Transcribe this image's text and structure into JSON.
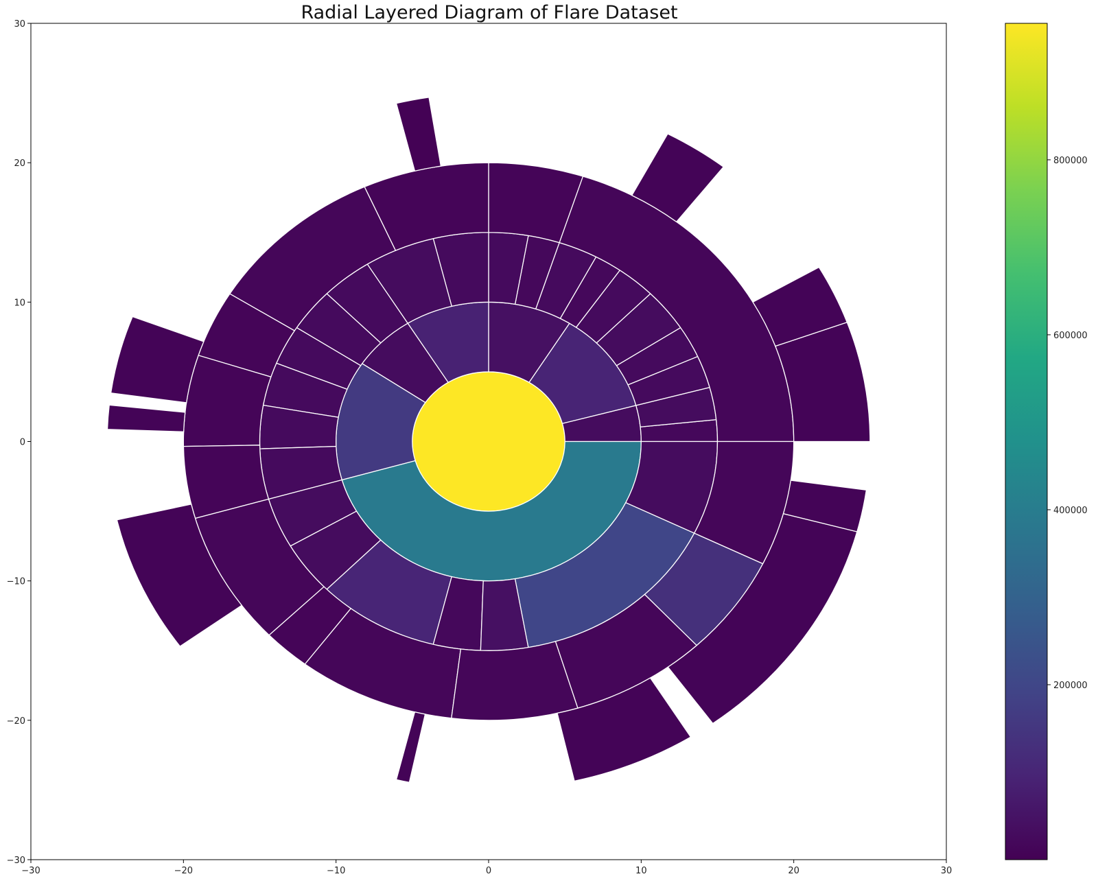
{
  "chart_data": {
    "type": "sunburst",
    "title": "Radial Layered Diagram of Flare Dataset",
    "xlim": [
      -30,
      30
    ],
    "ylim": [
      -30,
      30
    ],
    "xticks": [
      "−30",
      "−20",
      "−10",
      "0",
      "10",
      "20",
      "30"
    ],
    "yticks": [
      "−30",
      "−20",
      "−10",
      "0",
      "10",
      "20",
      "30"
    ],
    "colormap": "viridis",
    "colorbar": {
      "range": [
        0,
        956000
      ],
      "ticks": [
        "200000",
        "400000",
        "600000",
        "800000"
      ],
      "tick_values": [
        200000,
        400000,
        600000,
        800000
      ]
    },
    "rings": [
      {
        "level": 0,
        "inner_radius": 0,
        "outer_radius": 5,
        "segments": [
          {
            "start_deg": 0,
            "end_deg": 360,
            "value": 956000
          }
        ]
      },
      {
        "level": 1,
        "inner_radius": 5,
        "outer_radius": 10,
        "segments": [
          {
            "start_deg": 0,
            "end_deg": 15,
            "value": 30000
          },
          {
            "start_deg": 15,
            "end_deg": 58,
            "value": 95000
          },
          {
            "start_deg": 58,
            "end_deg": 90,
            "value": 40000
          },
          {
            "start_deg": 90,
            "end_deg": 122,
            "value": 90000
          },
          {
            "start_deg": 122,
            "end_deg": 146,
            "value": 30000
          },
          {
            "start_deg": 146,
            "end_deg": 196,
            "value": 160000
          },
          {
            "start_deg": 196,
            "end_deg": 360,
            "value": 390000
          }
        ]
      },
      {
        "level": 2,
        "inner_radius": 10,
        "outer_radius": 15,
        "segments": [
          {
            "start_deg": 0,
            "end_deg": 6,
            "value": 20000
          },
          {
            "start_deg": 6,
            "end_deg": 15,
            "value": 30000
          },
          {
            "start_deg": 15,
            "end_deg": 24,
            "value": 25000
          },
          {
            "start_deg": 24,
            "end_deg": 33,
            "value": 25000
          },
          {
            "start_deg": 33,
            "end_deg": 45,
            "value": 30000
          },
          {
            "start_deg": 45,
            "end_deg": 55,
            "value": 25000
          },
          {
            "start_deg": 55,
            "end_deg": 62,
            "value": 20000
          },
          {
            "start_deg": 62,
            "end_deg": 72,
            "value": 25000
          },
          {
            "start_deg": 72,
            "end_deg": 80,
            "value": 20000
          },
          {
            "start_deg": 80,
            "end_deg": 90,
            "value": 25000
          },
          {
            "start_deg": 90,
            "end_deg": 104,
            "value": 25000
          },
          {
            "start_deg": 104,
            "end_deg": 122,
            "value": 30000
          },
          {
            "start_deg": 122,
            "end_deg": 135,
            "value": 25000
          },
          {
            "start_deg": 135,
            "end_deg": 147,
            "value": 25000
          },
          {
            "start_deg": 147,
            "end_deg": 158,
            "value": 25000
          },
          {
            "start_deg": 158,
            "end_deg": 170,
            "value": 25000
          },
          {
            "start_deg": 170,
            "end_deg": 182,
            "value": 25000
          },
          {
            "start_deg": 182,
            "end_deg": 196,
            "value": 25000
          },
          {
            "start_deg": 196,
            "end_deg": 210,
            "value": 30000
          },
          {
            "start_deg": 210,
            "end_deg": 225,
            "value": 30000
          },
          {
            "start_deg": 225,
            "end_deg": 256,
            "value": 100000
          },
          {
            "start_deg": 256,
            "end_deg": 268,
            "value": 20000
          },
          {
            "start_deg": 268,
            "end_deg": 280,
            "value": 40000
          },
          {
            "start_deg": 280,
            "end_deg": 334,
            "value": 200000
          },
          {
            "start_deg": 334,
            "end_deg": 360,
            "value": 30000
          }
        ]
      },
      {
        "level": 3,
        "inner_radius": 15,
        "outer_radius": 20,
        "segments": [
          {
            "start_deg": 0,
            "end_deg": 72,
            "value": 15000
          },
          {
            "start_deg": 72,
            "end_deg": 90,
            "value": 12000
          },
          {
            "start_deg": 90,
            "end_deg": 114,
            "value": 12000
          },
          {
            "start_deg": 114,
            "end_deg": 148,
            "value": 15000
          },
          {
            "start_deg": 148,
            "end_deg": 162,
            "value": 12000
          },
          {
            "start_deg": 162,
            "end_deg": 181,
            "value": 12000
          },
          {
            "start_deg": 181,
            "end_deg": 196,
            "value": 12000
          },
          {
            "start_deg": 196,
            "end_deg": 224,
            "value": 15000
          },
          {
            "start_deg": 224,
            "end_deg": 233,
            "value": 12000
          },
          {
            "start_deg": 233,
            "end_deg": 263,
            "value": 15000
          },
          {
            "start_deg": 263,
            "end_deg": 287,
            "value": 15000
          },
          {
            "start_deg": 287,
            "end_deg": 313,
            "value": 15000
          },
          {
            "start_deg": 313,
            "end_deg": 334,
            "value": 130000
          },
          {
            "start_deg": 334,
            "end_deg": 360,
            "value": 15000
          }
        ]
      },
      {
        "level": 4,
        "inner_radius": 20,
        "outer_radius": 25,
        "segments": [
          {
            "start_deg": 0,
            "end_deg": 20,
            "value": 8000
          },
          {
            "start_deg": 20,
            "end_deg": 30,
            "value": 8000
          },
          {
            "start_deg": 52,
            "end_deg": 62,
            "value": 8000
          },
          {
            "start_deg": 99,
            "end_deg": 104,
            "value": 3000
          },
          {
            "start_deg": 159,
            "end_deg": 172,
            "value": 8000
          },
          {
            "start_deg": 174,
            "end_deg": 178,
            "value": 8000
          },
          {
            "start_deg": 193,
            "end_deg": 216,
            "value": 8000
          },
          {
            "start_deg": 256,
            "end_deg": 258,
            "value": 8000
          },
          {
            "start_deg": 283,
            "end_deg": 302,
            "value": 8000
          },
          {
            "start_deg": 306,
            "end_deg": 345,
            "value": 8000
          },
          {
            "start_deg": 345,
            "end_deg": 352,
            "value": 8000
          }
        ]
      }
    ]
  }
}
